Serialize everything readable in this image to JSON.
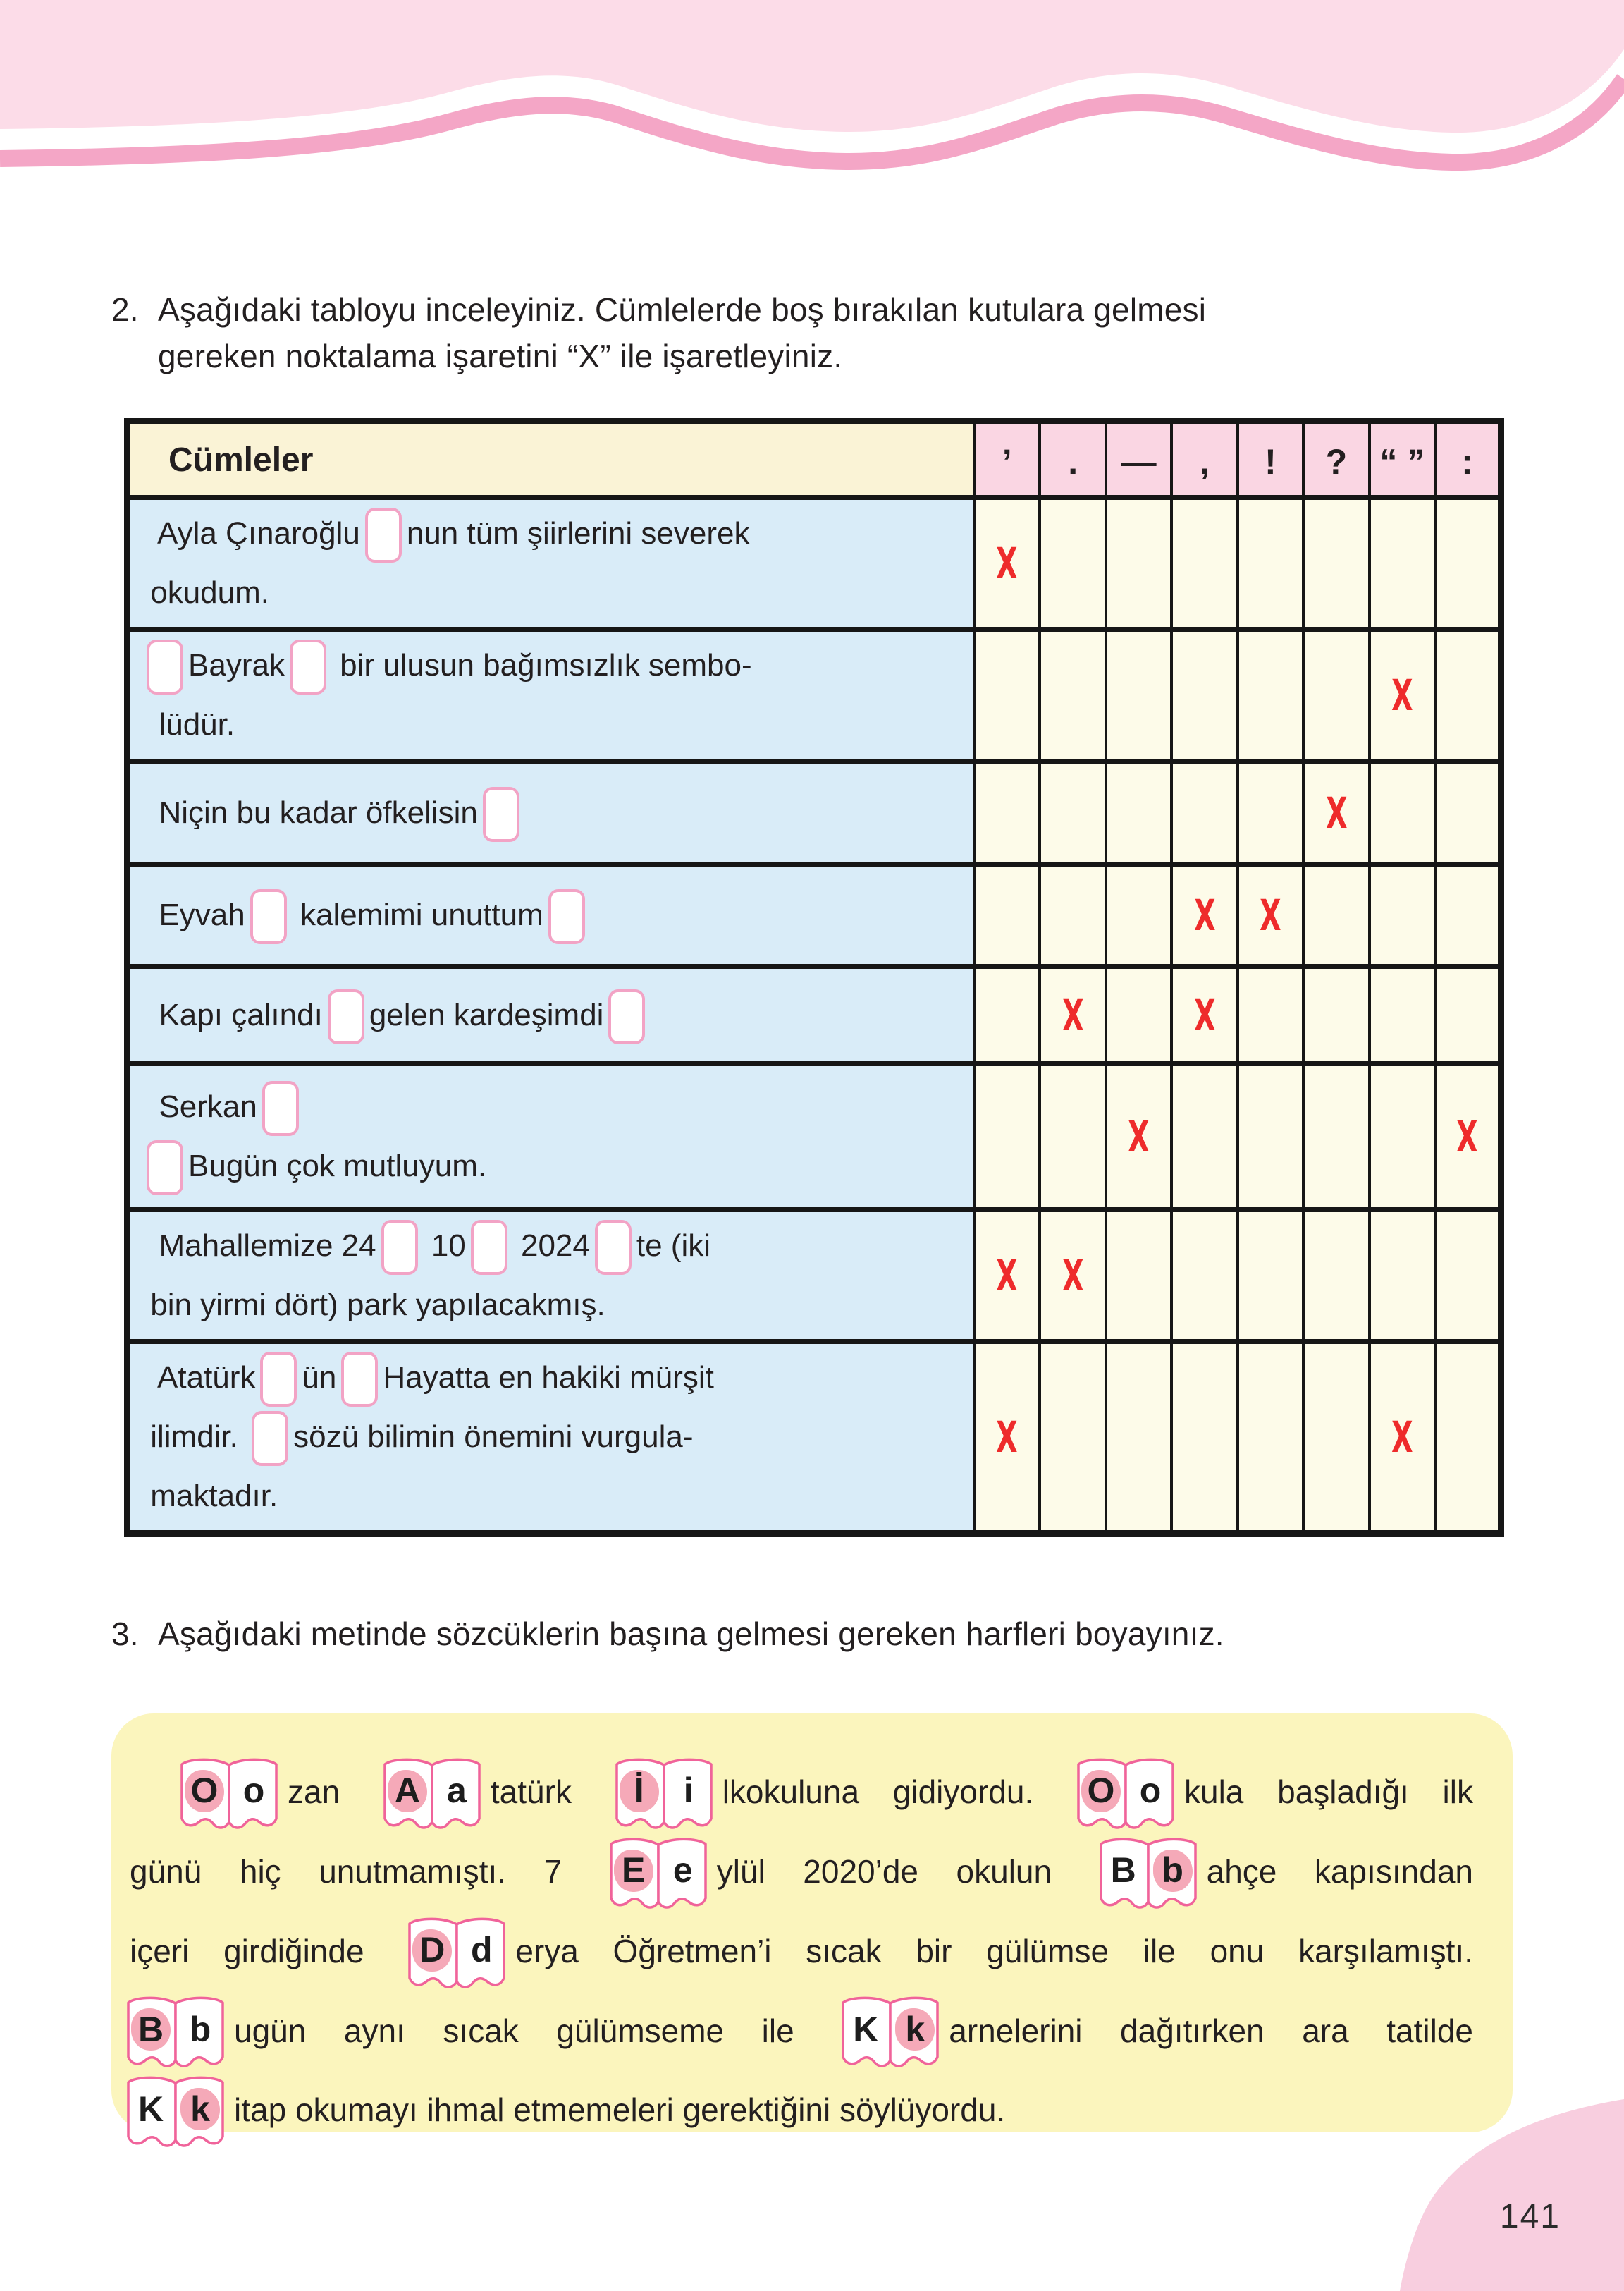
{
  "page_number": "141",
  "colors": {
    "header_light_pink": "#FCDCE8",
    "header_stripe_pink": "#F4A6C6",
    "table_header_pink": "#FAD6E3",
    "table_header_cream": "#FAF3D6",
    "sentence_cell_blue": "#D9ECF8",
    "answer_cell_cream": "#FDFBE9",
    "activity_box_yellow": "#FBF5BD",
    "mark_red": "#EE2B2B",
    "highlight_pink": "#F5A9B8",
    "box_border_pink": "#F2A3C5"
  },
  "question2": {
    "number": "2.",
    "text_lines": [
      "Aşağıdaki tabloyu inceleyiniz. Cümlelerde boş bırakılan kutulara gelmesi",
      "gereken noktalama işaretini “X” ile işaretleyiniz."
    ]
  },
  "punctuation_table": {
    "header_label": "Cümleler",
    "punctuation_columns": [
      "’",
      ".",
      "—",
      ",",
      "!",
      "?",
      "“ ”",
      ":"
    ],
    "mark_symbol": "X",
    "rows": [
      {
        "lines": [
          "  Ayla Çınaroğlu□nun tüm şiirlerini severek",
          " okudum."
        ],
        "marked_columns": [
          0
        ]
      },
      {
        "lines": [
          "□Bayrak□ bir ulusun bağımsızlık sembo-",
          "  lüdür."
        ],
        "marked_columns": [
          6
        ]
      },
      {
        "lines": [
          "  Niçin bu kadar öfkelisin□"
        ],
        "marked_columns": [
          5
        ]
      },
      {
        "lines": [
          "  Eyvah□ kalemimi unuttum□"
        ],
        "marked_columns": [
          3,
          4
        ]
      },
      {
        "lines": [
          "  Kapı çalındı□gelen kardeşimdi□"
        ],
        "marked_columns": [
          1,
          3
        ]
      },
      {
        "lines": [
          "  Serkan□",
          "□Bugün çok mutluyum."
        ],
        "marked_columns": [
          2,
          7
        ]
      },
      {
        "lines": [
          "  Mahallemize 24□ 10□ 2024□te (iki",
          " bin yirmi dört) park yapılacakmış."
        ],
        "marked_columns": [
          0,
          1
        ]
      },
      {
        "lines": [
          "  Atatürk□ün□Hayatta en hakiki mürşit",
          " ilimdir. □sözü bilimin önemini vurgula-",
          " maktadır."
        ],
        "marked_columns": [
          0,
          6
        ]
      }
    ]
  },
  "question3": {
    "number": "3.",
    "text": "Aşağıdaki metinde sözcüklerin başına gelmesi gereken harfleri boyayınız."
  },
  "letter_text": {
    "lines": [
      {
        "style": "indent",
        "segments": [
          {
            "pair": [
              "O",
              "o"
            ],
            "highlight": 0
          },
          {
            "text": "zan "
          },
          {
            "pair": [
              "A",
              "a"
            ],
            "highlight": 0
          },
          {
            "text": "tatürk "
          },
          {
            "pair": [
              "İ",
              "i"
            ],
            "highlight": 0
          },
          {
            "text": "lkokuluna gidiyordu. "
          },
          {
            "pair": [
              "O",
              "o"
            ],
            "highlight": 0
          },
          {
            "text": "kula başladığı ilk"
          }
        ]
      },
      {
        "style": "normal",
        "segments": [
          {
            "text": "günü hiç unutmamıştı. 7 "
          },
          {
            "pair": [
              "E",
              "e"
            ],
            "highlight": 0
          },
          {
            "text": "ylül 2020’de okulun "
          },
          {
            "pair": [
              "B",
              "b"
            ],
            "highlight": 1
          },
          {
            "text": "ahçe kapısından"
          }
        ]
      },
      {
        "style": "normal",
        "segments": [
          {
            "text": "içeri girdiğinde "
          },
          {
            "pair": [
              "D",
              "d"
            ],
            "highlight": 0
          },
          {
            "text": "erya Öğretmen’i sıcak bir gülümse ile onu karşılamıştı."
          }
        ]
      },
      {
        "style": "flush",
        "segments": [
          {
            "pair": [
              "B",
              "b"
            ],
            "highlight": 0
          },
          {
            "text": "ugün aynı sıcak gülümseme ile "
          },
          {
            "pair": [
              "K",
              "k"
            ],
            "highlight": 1
          },
          {
            "text": "arnelerini dağıtırken ara tatilde"
          }
        ]
      },
      {
        "style": "flush",
        "segments": [
          {
            "pair": [
              "K",
              "k"
            ],
            "highlight": 1
          },
          {
            "text": "itap okumayı ihmal etmemeleri gerektiğini söylüyordu."
          }
        ]
      }
    ]
  }
}
